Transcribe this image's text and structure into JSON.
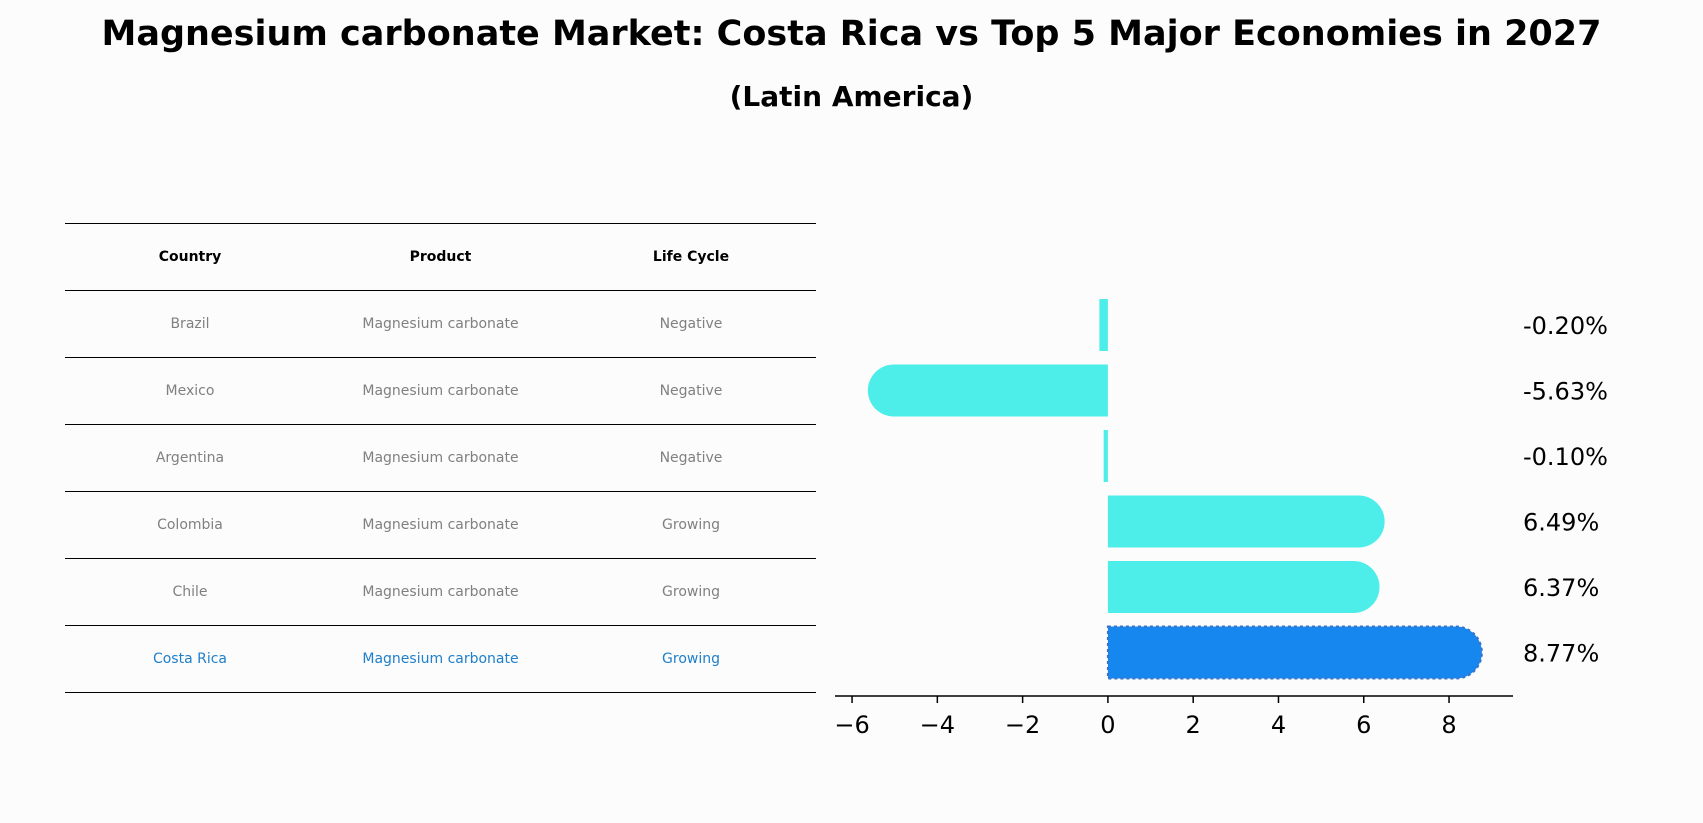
{
  "title": "Magnesium carbonate Market: Costa Rica vs Top 5 Major Economies in 2027",
  "subtitle": "(Latin America)",
  "table": {
    "headers": [
      "Country",
      "Product",
      "Life Cycle"
    ],
    "rows": [
      {
        "country": "Brazil",
        "product": "Magnesium carbonate",
        "life_cycle": "Negative"
      },
      {
        "country": "Mexico",
        "product": "Magnesium carbonate",
        "life_cycle": "Negative"
      },
      {
        "country": "Argentina",
        "product": "Magnesium carbonate",
        "life_cycle": "Negative"
      },
      {
        "country": "Colombia",
        "product": "Magnesium carbonate",
        "life_cycle": "Growing"
      },
      {
        "country": "Chile",
        "product": "Magnesium carbonate",
        "life_cycle": "Growing"
      },
      {
        "country": "Costa Rica",
        "product": "Magnesium carbonate",
        "life_cycle": "Growing"
      }
    ]
  },
  "chart_data": {
    "type": "bar",
    "orientation": "horizontal",
    "categories": [
      "Brazil",
      "Mexico",
      "Argentina",
      "Colombia",
      "Chile",
      "Costa Rica"
    ],
    "values": [
      -0.2,
      -5.63,
      -0.1,
      6.49,
      6.37,
      8.77
    ],
    "value_labels": [
      "-0.20%",
      "-5.63%",
      "-0.10%",
      "6.49%",
      "6.37%",
      "8.77%"
    ],
    "highlight": "Costa Rica",
    "colors": {
      "default": "#4deeea",
      "highlight": "#1787f0"
    },
    "xticks": [
      -6,
      -4,
      -2,
      0,
      2,
      4,
      6,
      8
    ],
    "xtick_labels": [
      "−6",
      "−4",
      "−2",
      "0",
      "2",
      "4",
      "6",
      "8"
    ],
    "xlim": [
      -6.4,
      9.5
    ],
    "grid": false,
    "legend": "none"
  }
}
